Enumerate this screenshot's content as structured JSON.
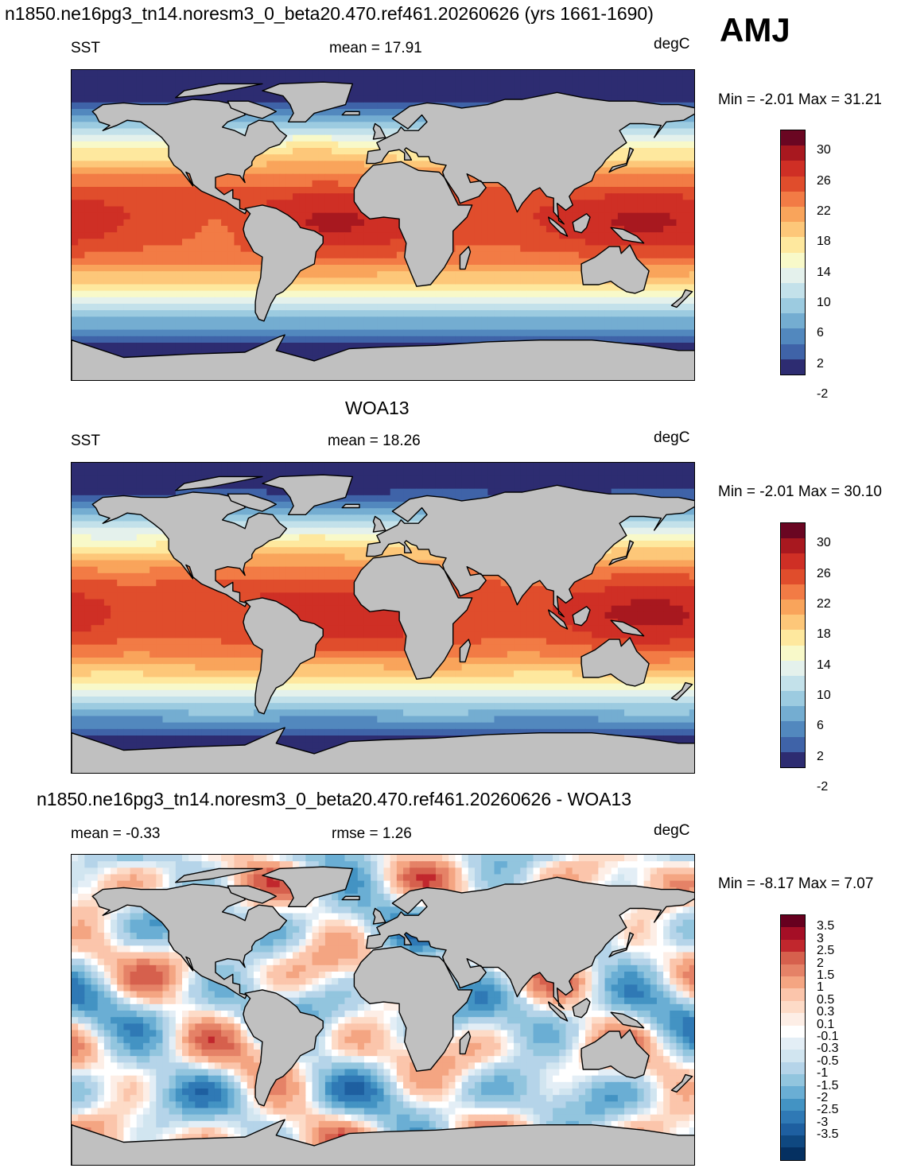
{
  "figure": {
    "title": "n1850.ne16pg3_tn14.noresm3_0_beta20.470.ref461.20260626 (yrs 1661-1690)",
    "season": "AMJ"
  },
  "panels": [
    {
      "id": "model",
      "title": "",
      "left_label": "SST",
      "center_label": "mean =  17.91",
      "units": "degC",
      "minmax": "Min =  -2.01 Max =  31.21",
      "stats": {
        "mean": 17.91,
        "min": -2.01,
        "max": 31.21
      },
      "colorbar_labels": [
        "30",
        "26",
        "22",
        "18",
        "14",
        "10",
        "6",
        "2",
        "-2"
      ]
    },
    {
      "id": "obs",
      "title": "WOA13",
      "left_label": "SST",
      "center_label": "mean =  18.26",
      "units": "degC",
      "minmax": "Min =  -2.01 Max =  30.10",
      "stats": {
        "mean": 18.26,
        "min": -2.01,
        "max": 30.1
      },
      "colorbar_labels": [
        "30",
        "26",
        "22",
        "18",
        "14",
        "10",
        "6",
        "2",
        "-2"
      ]
    },
    {
      "id": "diff",
      "title": "n1850.ne16pg3_tn14.noresm3_0_beta20.470.ref461.20260626 - WOA13",
      "left_label": "mean =  -0.33",
      "center_label": "rmse =   1.26",
      "units": "degC",
      "minmax": "Min =  -8.17 Max =   7.07",
      "stats": {
        "mean": -0.33,
        "rmse": 1.26,
        "min": -8.17,
        "max": 7.07
      },
      "colorbar_labels": [
        "3.5",
        "3",
        "2.5",
        "2",
        "1.5",
        "1",
        "0.5",
        "0.3",
        "0.1",
        "-0.1",
        "-0.3",
        "-0.5",
        "-1",
        "-1.5",
        "-2",
        "-2.5",
        "-3",
        "-3.5"
      ]
    }
  ],
  "colormaps": {
    "sst": [
      "#6a0622",
      "#a8181f",
      "#cf2f25",
      "#e04d2c",
      "#f27b45",
      "#f9a45b",
      "#fdc779",
      "#fee89e",
      "#f8f9c9",
      "#e4f1ec",
      "#c3e1ea",
      "#9ccbe0",
      "#74add1",
      "#5288be",
      "#3f63a8",
      "#2d2c71"
    ],
    "diff": [
      "#67001f",
      "#a50f26",
      "#c1272d",
      "#d6604d",
      "#e58267",
      "#f4a582",
      "#fbc5ab",
      "#fddbc7",
      "#fdeee6",
      "#ffffff",
      "#e3eef6",
      "#d1e5f0",
      "#b5d4e9",
      "#92c5de",
      "#6aaed4",
      "#4393c3",
      "#2f79b5",
      "#1e5fa0",
      "#0f4880",
      "#053061"
    ],
    "land": "#c0c0c0"
  }
}
